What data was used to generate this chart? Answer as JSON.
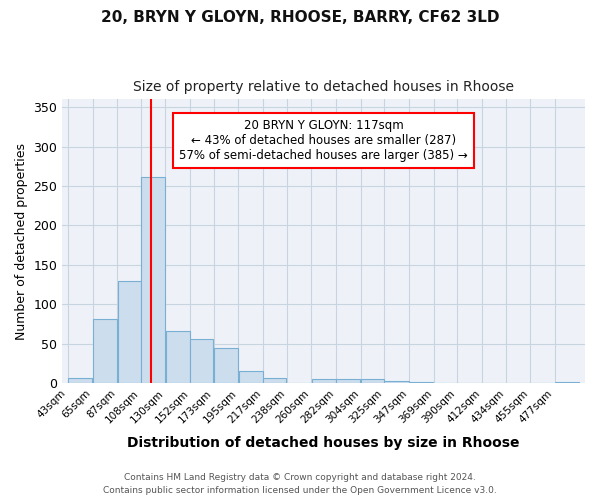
{
  "title1": "20, BRYN Y GLOYN, RHOOSE, BARRY, CF62 3LD",
  "title2": "Size of property relative to detached houses in Rhoose",
  "xlabel": "Distribution of detached houses by size in Rhoose",
  "ylabel": "Number of detached properties",
  "footnote": "Contains HM Land Registry data © Crown copyright and database right 2024.\nContains public sector information licensed under the Open Government Licence v3.0.",
  "bin_labels": [
    "43sqm",
    "65sqm",
    "87sqm",
    "108sqm",
    "130sqm",
    "152sqm",
    "173sqm",
    "195sqm",
    "217sqm",
    "238sqm",
    "260sqm",
    "282sqm",
    "304sqm",
    "325sqm",
    "347sqm",
    "369sqm",
    "390sqm",
    "412sqm",
    "434sqm",
    "455sqm",
    "477sqm"
  ],
  "bin_edges": [
    43,
    65,
    87,
    108,
    130,
    152,
    173,
    195,
    217,
    238,
    260,
    282,
    304,
    325,
    347,
    369,
    390,
    412,
    434,
    455,
    477,
    499
  ],
  "values": [
    6,
    81,
    129,
    262,
    66,
    56,
    45,
    15,
    7,
    0,
    5,
    5,
    5,
    3,
    2,
    0,
    0,
    0,
    0,
    0,
    2
  ],
  "bar_color": "#ccdded",
  "bar_edge_color": "#7aafd4",
  "red_line_x": 117,
  "annotation_text": "20 BRYN Y GLOYN: 117sqm\n← 43% of detached houses are smaller (287)\n57% of semi-detached houses are larger (385) →",
  "annotation_box_color": "white",
  "annotation_box_edge_color": "red",
  "ylim": [
    0,
    360
  ],
  "yticks": [
    0,
    50,
    100,
    150,
    200,
    250,
    300,
    350
  ],
  "background_color": "#ffffff",
  "plot_bg_color": "#eef2f8",
  "grid_color": "#c8d4e0"
}
